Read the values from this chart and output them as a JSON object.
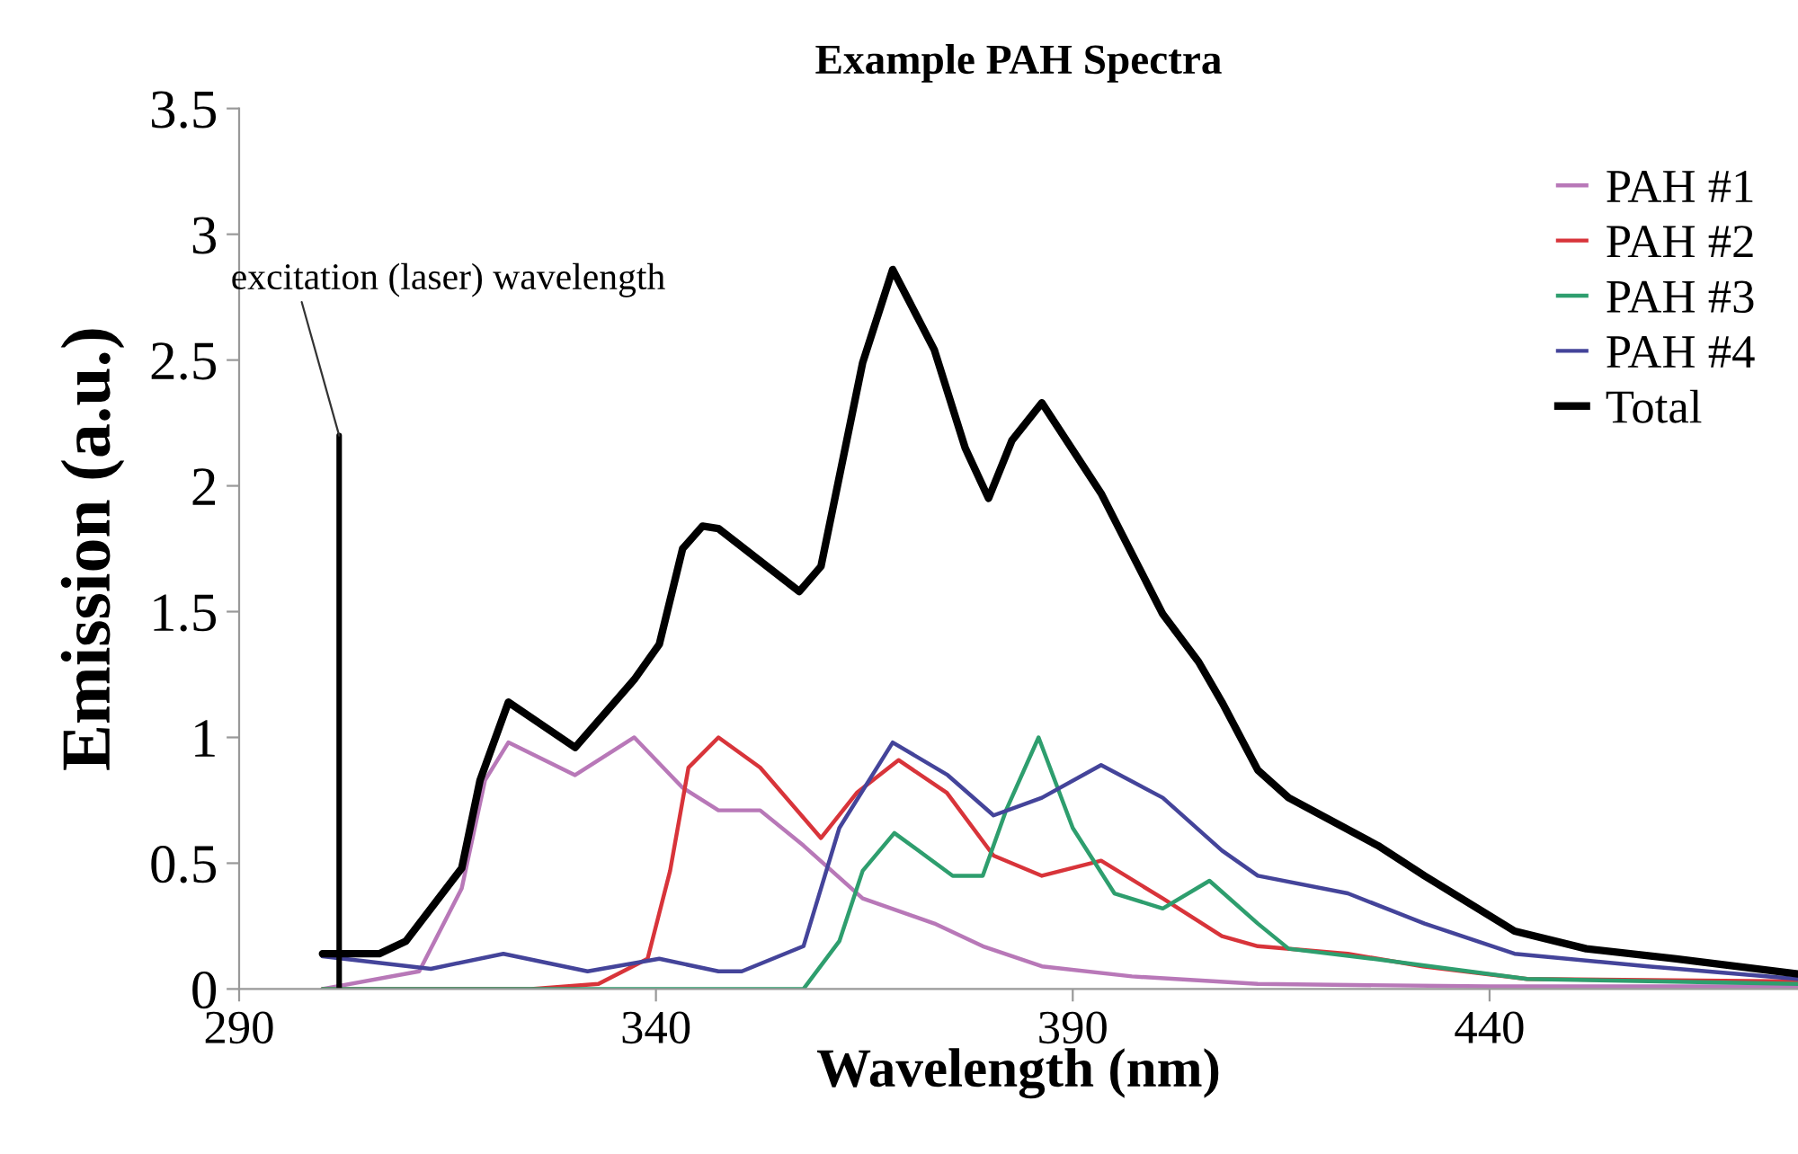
{
  "chart_data": {
    "type": "line",
    "title": "Example PAH Spectra",
    "xlabel": "Wavelength (nm)",
    "ylabel": "Emission (a.u.)",
    "xlim": [
      290,
      477
    ],
    "xticks": [
      290,
      340,
      390,
      440
    ],
    "ylim": [
      0,
      3.5
    ],
    "yticks": [
      0,
      0.5,
      1,
      1.5,
      2,
      2.5,
      3,
      3.5
    ],
    "grid": false,
    "legend": "top right",
    "marker": "none",
    "line_style": "solid",
    "annotations": [
      {
        "text": "excitation (laser) wavelength",
        "x": 302,
        "y": 2.2
      }
    ],
    "series": [
      {
        "name": "PAH #1",
        "color": "#b878b8",
        "x": [
          300,
          311.6,
          316.7,
          319.5,
          322.3,
          330.3,
          337.4,
          343.2,
          347.5,
          352.5,
          357.7,
          364.8,
          373.4,
          379.2,
          386.3,
          397.1,
          412.2,
          440,
          477
        ],
        "values": [
          0.0,
          0.07,
          0.4,
          0.83,
          0.98,
          0.85,
          1.0,
          0.8,
          0.71,
          0.71,
          0.57,
          0.36,
          0.26,
          0.17,
          0.09,
          0.05,
          0.02,
          0.01,
          0.01
        ]
      },
      {
        "name": "PAH #2",
        "color": "#d8343a",
        "x": [
          300,
          325,
          333.1,
          339,
          341.7,
          343.9,
          347.5,
          352.5,
          359.8,
          364.1,
          369.1,
          374.9,
          380.5,
          386.3,
          393.4,
          400.8,
          407.9,
          412.2,
          423,
          432,
          444.5,
          477
        ],
        "values": [
          0.0,
          0.0,
          0.02,
          0.12,
          0.47,
          0.88,
          1.0,
          0.88,
          0.6,
          0.78,
          0.91,
          0.78,
          0.53,
          0.45,
          0.51,
          0.36,
          0.21,
          0.17,
          0.14,
          0.09,
          0.04,
          0.03
        ]
      },
      {
        "name": "PAH #3",
        "color": "#2e9e6e",
        "x": [
          300,
          357.7,
          362,
          364.8,
          368.6,
          375.6,
          379.2,
          382,
          385.9,
          390,
          395,
          400.8,
          406.4,
          412.2,
          415.9,
          426,
          433,
          444.5,
          477
        ],
        "values": [
          0.0,
          0.0,
          0.19,
          0.47,
          0.62,
          0.45,
          0.45,
          0.71,
          1.0,
          0.64,
          0.38,
          0.32,
          0.43,
          0.26,
          0.16,
          0.12,
          0.09,
          0.04,
          0.02
        ]
      },
      {
        "name": "PAH #4",
        "color": "#44449a",
        "x": [
          300,
          313,
          321.7,
          331.8,
          340.4,
          347.5,
          350.3,
          357.7,
          362,
          368.4,
          375,
          380.5,
          386.3,
          393.4,
          400.8,
          407.9,
          412.2,
          423,
          432.2,
          443,
          459,
          477
        ],
        "values": [
          0.13,
          0.08,
          0.14,
          0.07,
          0.12,
          0.07,
          0.07,
          0.17,
          0.64,
          0.98,
          0.85,
          0.69,
          0.76,
          0.89,
          0.76,
          0.55,
          0.45,
          0.38,
          0.26,
          0.14,
          0.09,
          0.04
        ]
      },
      {
        "name": "Total",
        "color": "#000000",
        "x": [
          300,
          306.8,
          310,
          316.7,
          318.9,
          322.3,
          330.3,
          337.4,
          340.4,
          343.2,
          345.6,
          347.5,
          357.2,
          359.8,
          364.8,
          368.4,
          373.4,
          377.1,
          379.9,
          382.7,
          386.3,
          393.4,
          400.8,
          405.1,
          407.9,
          412.2,
          415.9,
          426.6,
          432.2,
          443,
          451.6,
          462.4,
          477
        ],
        "values": [
          0.14,
          0.14,
          0.19,
          0.48,
          0.83,
          1.14,
          0.96,
          1.23,
          1.37,
          1.75,
          1.84,
          1.83,
          1.58,
          1.68,
          2.49,
          2.86,
          2.54,
          2.15,
          1.95,
          2.18,
          2.33,
          1.97,
          1.49,
          1.3,
          1.14,
          0.87,
          0.76,
          0.57,
          0.45,
          0.23,
          0.16,
          0.12,
          0.06
        ]
      },
      {
        "color": "#000000",
        "x": [
          302,
          302
        ],
        "values": [
          0,
          2.2
        ]
      }
    ]
  }
}
